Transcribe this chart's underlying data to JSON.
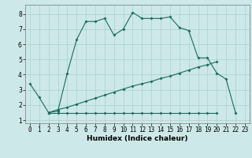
{
  "xlabel": "Humidex (Indice chaleur)",
  "background_color": "#cde8e8",
  "grid_color": "#aad0d0",
  "line_color": "#1a6b5a",
  "xlim": [
    -0.5,
    23.5
  ],
  "ylim": [
    0.8,
    8.6
  ],
  "xtick_labels": [
    "0",
    "1",
    "2",
    "3",
    "4",
    "5",
    "6",
    "7",
    "8",
    "9",
    "10",
    "11",
    "12",
    "13",
    "14",
    "15",
    "16",
    "17",
    "18",
    "19",
    "20",
    "21",
    "22",
    "23"
  ],
  "xtick_vals": [
    0,
    1,
    2,
    3,
    4,
    5,
    6,
    7,
    8,
    9,
    10,
    11,
    12,
    13,
    14,
    15,
    16,
    17,
    18,
    19,
    20,
    21,
    22,
    23
  ],
  "ytick_vals": [
    1,
    2,
    3,
    4,
    5,
    6,
    7,
    8
  ],
  "curve1_x": [
    0,
    1,
    2,
    3,
    4,
    5,
    6,
    7,
    8,
    9,
    10,
    11,
    12,
    13,
    14,
    15,
    16,
    17,
    18,
    19,
    20,
    21,
    22
  ],
  "curve1_y": [
    3.4,
    2.5,
    1.5,
    1.6,
    4.1,
    6.3,
    7.5,
    7.5,
    7.7,
    6.6,
    7.0,
    8.1,
    7.7,
    7.7,
    7.7,
    7.8,
    7.1,
    6.9,
    5.1,
    5.1,
    4.1,
    3.7,
    1.5
  ],
  "curve2_x": [
    2,
    3,
    4,
    5,
    6,
    7,
    8,
    9,
    10,
    11,
    12,
    13,
    14,
    15,
    16,
    17,
    18,
    19,
    20
  ],
  "curve2_y": [
    1.5,
    1.7,
    1.85,
    2.05,
    2.25,
    2.45,
    2.65,
    2.85,
    3.05,
    3.25,
    3.4,
    3.55,
    3.75,
    3.9,
    4.1,
    4.3,
    4.5,
    4.65,
    4.85
  ],
  "curve3_x": [
    2,
    3,
    4,
    5,
    6,
    7,
    8,
    9,
    10,
    11,
    12,
    13,
    14,
    15,
    16,
    17,
    18,
    19,
    20
  ],
  "curve3_y": [
    1.5,
    1.5,
    1.5,
    1.5,
    1.5,
    1.5,
    1.5,
    1.5,
    1.5,
    1.5,
    1.5,
    1.5,
    1.5,
    1.5,
    1.5,
    1.5,
    1.5,
    1.5,
    1.5
  ],
  "tick_fontsize": 5.5,
  "label_fontsize": 6.5,
  "linewidth": 0.8,
  "markersize": 2.0
}
